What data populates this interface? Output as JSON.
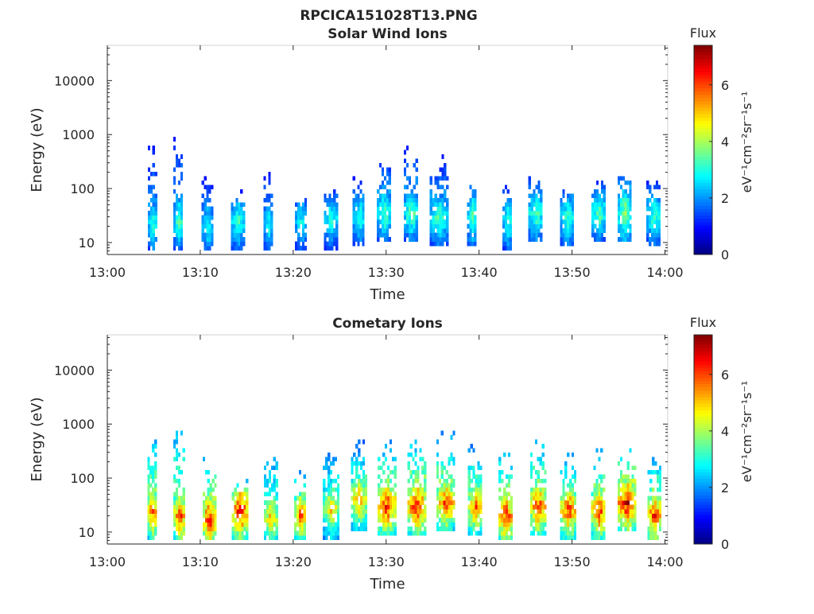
{
  "figure": {
    "title": "RPCICA151028T13.PNG"
  },
  "chart_data": [
    {
      "type": "heatmap",
      "title": "Solar Wind Ions",
      "xlabel": "Time",
      "ylabel": "Energy (eV)",
      "x_ticks": [
        "13:00",
        "13:10",
        "13:20",
        "13:30",
        "13:40",
        "13:50",
        "14:00"
      ],
      "x_tick_minutes": [
        0,
        10,
        20,
        30,
        40,
        50,
        60
      ],
      "xlim_minutes": [
        0,
        60.3
      ],
      "y_scale": "log",
      "y_ticks": [
        10,
        100,
        1000,
        10000
      ],
      "y_tick_labels": [
        "10",
        "100",
        "1000",
        "10000"
      ],
      "ylim": [
        6,
        45000
      ],
      "colorbar": {
        "title": "Flux",
        "label": "eV⁻¹cm⁻²sr⁻¹s⁻¹",
        "range": [
          0,
          7.4
        ],
        "ticks": [
          0,
          2,
          4,
          6
        ],
        "tick_labels": [
          "0",
          "2",
          "4",
          "6"
        ],
        "colormap": "jet"
      },
      "bursts": [
        {
          "t": 4.8,
          "core_e": 22,
          "core_f": 3.2,
          "top_e": 900,
          "width": 0.9
        },
        {
          "t": 7.6,
          "core_e": 25,
          "core_f": 3.4,
          "top_e": 1150,
          "width": 1.0
        },
        {
          "t": 10.7,
          "core_e": 20,
          "core_f": 3.0,
          "top_e": 180,
          "width": 1.1
        },
        {
          "t": 14.0,
          "core_e": 25,
          "core_f": 3.2,
          "top_e": 50,
          "width": 1.4
        },
        {
          "t": 17.3,
          "core_e": 22,
          "core_f": 3.0,
          "top_e": 250,
          "width": 1.0
        },
        {
          "t": 20.8,
          "core_e": 24,
          "core_f": 3.0,
          "top_e": 80,
          "width": 1.2
        },
        {
          "t": 24.0,
          "core_e": 28,
          "core_f": 3.1,
          "top_e": 100,
          "width": 1.4
        },
        {
          "t": 27.0,
          "core_e": 30,
          "core_f": 3.2,
          "top_e": 200,
          "width": 1.2
        },
        {
          "t": 29.7,
          "core_e": 35,
          "core_f": 3.5,
          "top_e": 450,
          "width": 1.4
        },
        {
          "t": 32.6,
          "core_e": 35,
          "core_f": 3.5,
          "top_e": 650,
          "width": 1.4
        },
        {
          "t": 35.6,
          "core_e": 30,
          "core_f": 3.4,
          "top_e": 380,
          "width": 1.8
        },
        {
          "t": 39.2,
          "core_e": 30,
          "core_f": 3.5,
          "top_e": 200,
          "width": 1.0
        },
        {
          "t": 43.0,
          "core_e": 25,
          "core_f": 3.2,
          "top_e": 150,
          "width": 1.0
        },
        {
          "t": 46.0,
          "core_e": 35,
          "core_f": 3.5,
          "top_e": 200,
          "width": 1.4
        },
        {
          "t": 49.4,
          "core_e": 30,
          "core_f": 3.3,
          "top_e": 100,
          "width": 1.4
        },
        {
          "t": 52.8,
          "core_e": 35,
          "core_f": 3.5,
          "top_e": 150,
          "width": 1.4
        },
        {
          "t": 55.6,
          "core_e": 35,
          "core_f": 4.0,
          "top_e": 230,
          "width": 1.4
        },
        {
          "t": 58.7,
          "core_e": 30,
          "core_f": 3.4,
          "top_e": 140,
          "width": 1.4
        }
      ]
    },
    {
      "type": "heatmap",
      "title": "Cometary Ions",
      "xlabel": "Time",
      "ylabel": "Energy (eV)",
      "x_ticks": [
        "13:00",
        "13:10",
        "13:20",
        "13:30",
        "13:40",
        "13:50",
        "14:00"
      ],
      "x_tick_minutes": [
        0,
        10,
        20,
        30,
        40,
        50,
        60
      ],
      "xlim_minutes": [
        0,
        60.3
      ],
      "y_scale": "log",
      "y_ticks": [
        10,
        100,
        1000,
        10000
      ],
      "y_tick_labels": [
        "10",
        "100",
        "1000",
        "10000"
      ],
      "ylim": [
        6,
        45000
      ],
      "colorbar": {
        "title": "Flux",
        "label": "eV⁻¹cm⁻²sr⁻¹s⁻¹",
        "range": [
          0,
          7.4
        ],
        "ticks": [
          0,
          2,
          4,
          6
        ],
        "tick_labels": [
          "0",
          "2",
          "4",
          "6"
        ],
        "colormap": "jet"
      },
      "bursts": [
        {
          "t": 4.8,
          "core_e": 25,
          "core_f": 6.0,
          "top_e": 900,
          "width": 1.0
        },
        {
          "t": 7.7,
          "core_e": 20,
          "core_f": 6.2,
          "top_e": 1150,
          "width": 1.2
        },
        {
          "t": 10.9,
          "core_e": 18,
          "core_f": 6.5,
          "top_e": 300,
          "width": 1.3
        },
        {
          "t": 14.2,
          "core_e": 25,
          "core_f": 6.6,
          "top_e": 100,
          "width": 1.6
        },
        {
          "t": 17.5,
          "core_e": 18,
          "core_f": 5.2,
          "top_e": 400,
          "width": 1.3
        },
        {
          "t": 20.7,
          "core_e": 20,
          "core_f": 5.8,
          "top_e": 150,
          "width": 1.2
        },
        {
          "t": 24.0,
          "core_e": 28,
          "core_f": 5.0,
          "top_e": 400,
          "width": 1.6
        },
        {
          "t": 27.0,
          "core_e": 40,
          "core_f": 5.4,
          "top_e": 500,
          "width": 1.6
        },
        {
          "t": 30.0,
          "core_e": 30,
          "core_f": 6.4,
          "top_e": 500,
          "width": 1.8
        },
        {
          "t": 33.2,
          "core_e": 30,
          "core_f": 6.5,
          "top_e": 650,
          "width": 1.8
        },
        {
          "t": 36.3,
          "core_e": 35,
          "core_f": 6.0,
          "top_e": 800,
          "width": 1.8
        },
        {
          "t": 39.5,
          "core_e": 30,
          "core_f": 5.8,
          "top_e": 500,
          "width": 1.4
        },
        {
          "t": 42.8,
          "core_e": 20,
          "core_f": 6.3,
          "top_e": 400,
          "width": 1.4
        },
        {
          "t": 46.3,
          "core_e": 30,
          "core_f": 6.2,
          "top_e": 650,
          "width": 1.6
        },
        {
          "t": 49.5,
          "core_e": 25,
          "core_f": 6.2,
          "top_e": 300,
          "width": 1.6
        },
        {
          "t": 52.8,
          "core_e": 25,
          "core_f": 6.2,
          "top_e": 350,
          "width": 1.5
        },
        {
          "t": 55.8,
          "core_e": 35,
          "core_f": 6.8,
          "top_e": 450,
          "width": 1.8
        },
        {
          "t": 58.8,
          "core_e": 20,
          "core_f": 6.3,
          "top_e": 300,
          "width": 1.4
        }
      ]
    }
  ]
}
